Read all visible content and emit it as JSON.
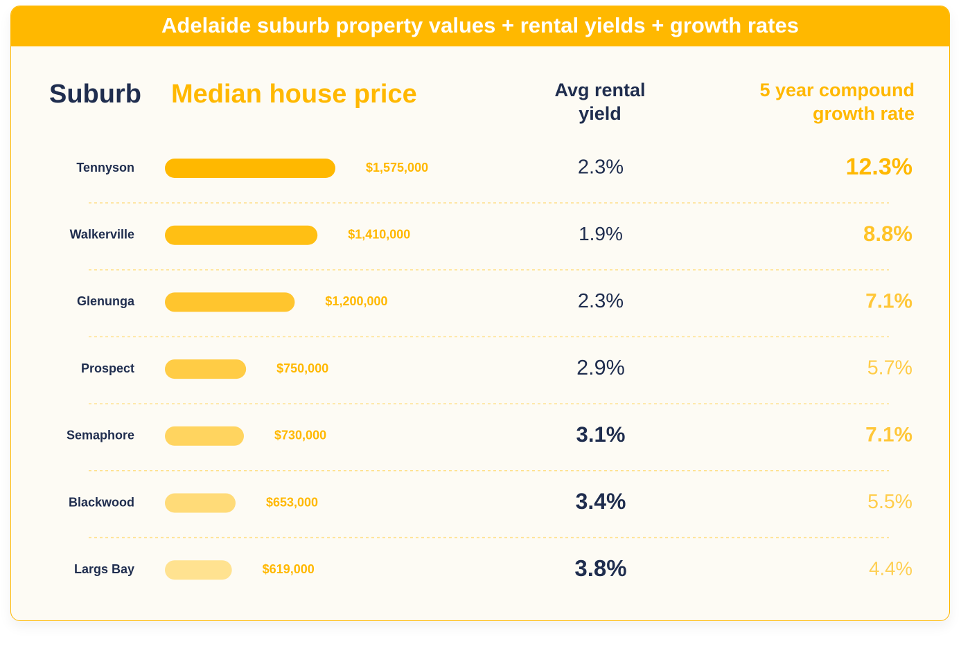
{
  "chart_data": {
    "type": "bar",
    "title": "Adelaide suburb property values + rental yields + growth rates",
    "category_header": "Suburb",
    "value_header": "Median house price",
    "categories": [
      "Tennyson",
      "Walkerville",
      "Glenunga",
      "Prospect",
      "Semaphore",
      "Blackwood",
      "Largs Bay"
    ],
    "values": [
      1575000,
      1410000,
      1200000,
      750000,
      730000,
      653000,
      619000
    ],
    "value_labels": [
      "$1,575,000",
      "$1,410,000",
      "$1,200,000",
      "$750,000",
      "$730,000",
      "$653,000",
      "$619,000"
    ],
    "colors": [
      "#FFB800",
      "#FFBF14",
      "#FFC52E",
      "#FFCC45",
      "#FFD45F",
      "#FFDB78",
      "#FFE290"
    ],
    "rental_yield": {
      "header": "Avg rental yield",
      "values": [
        2.3,
        1.9,
        2.3,
        2.9,
        3.1,
        3.4,
        3.8
      ],
      "value_labels": [
        "2.3%",
        "1.9%",
        "2.3%",
        "2.9%",
        "3.1%",
        "3.4%",
        "3.8%"
      ],
      "color": "#1F2D4E"
    },
    "growth_rate": {
      "header": "5 year compound growth rate",
      "values": [
        12.3,
        8.8,
        7.1,
        5.7,
        7.1,
        5.5,
        4.4
      ],
      "value_labels": [
        "12.3%",
        "8.8%",
        "7.1%",
        "5.7%",
        "7.1%",
        "5.5%",
        "4.4%"
      ],
      "color": "#FFB800"
    }
  }
}
